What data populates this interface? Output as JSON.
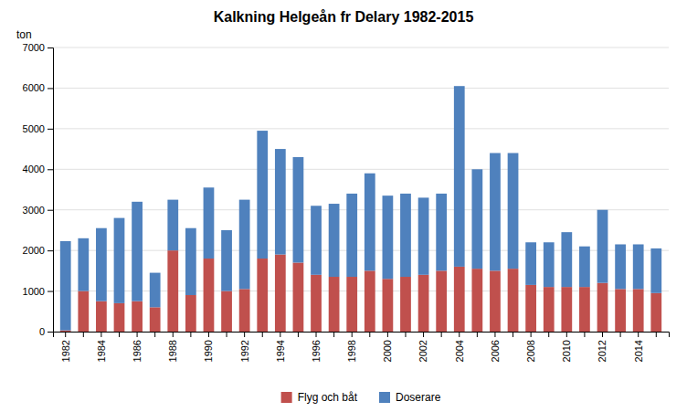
{
  "chart_data": {
    "type": "bar",
    "title": "Kalkning Helgeån fr Delary 1982-2015",
    "ylabel": "ton",
    "categories": [
      "1982",
      null,
      "1984",
      null,
      "1986",
      null,
      "1988",
      null,
      "1990",
      null,
      "1992",
      null,
      "1994",
      null,
      "1996",
      null,
      "1998",
      null,
      "2000",
      null,
      "2002",
      null,
      "2004",
      null,
      "2006",
      null,
      "2008",
      null,
      "2010",
      null,
      "2012",
      null,
      "2014",
      null
    ],
    "series": [
      {
        "name": "Flyg och båt",
        "color": "#c0504d",
        "values": [
          30,
          1000,
          750,
          700,
          750,
          600,
          2000,
          900,
          1800,
          1000,
          1050,
          1800,
          1900,
          1700,
          1400,
          1350,
          1350,
          1500,
          1300,
          1350,
          1400,
          1500,
          1600,
          1550,
          1500,
          1550,
          1150,
          1100,
          1100,
          1100,
          1200,
          1050,
          1050,
          950
        ]
      },
      {
        "name": "Doserare",
        "color": "#4f81bd",
        "values": [
          2200,
          1300,
          1800,
          2100,
          2450,
          850,
          1250,
          1650,
          1750,
          1500,
          2200,
          3150,
          2600,
          2600,
          1700,
          1800,
          2050,
          2400,
          2050,
          2050,
          1900,
          1900,
          4450,
          2450,
          2900,
          2850,
          1050,
          1100,
          1350,
          1000,
          1800,
          1100,
          1100,
          1100
        ]
      }
    ],
    "stacked": true,
    "ylim": [
      0,
      7000
    ],
    "yticks": [
      0,
      1000,
      2000,
      3000,
      4000,
      5000,
      6000,
      7000
    ],
    "grid": true,
    "legend": "bottom"
  }
}
